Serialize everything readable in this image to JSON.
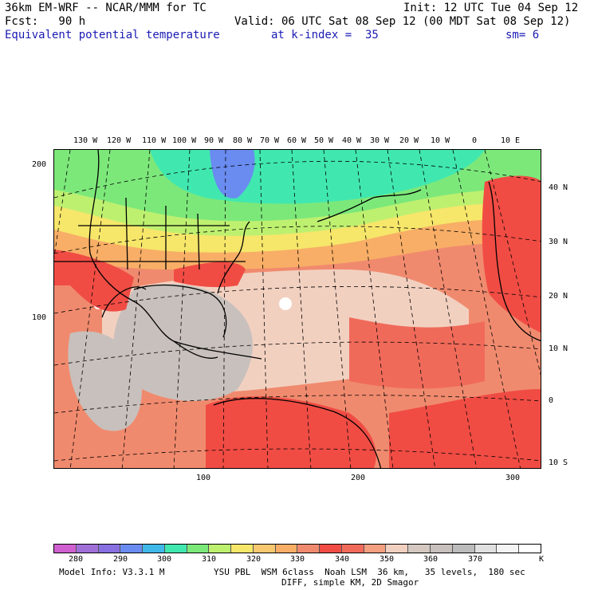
{
  "header": {
    "model_line": "36km EM-WRF -- NCAR/MMM for TC",
    "init_line": "Init: 12 UTC Tue 04 Sep 12",
    "fcst_line": "Fcst:   90 h",
    "valid_line": "Valid: 06 UTC Sat 08 Sep 12 (00 MDT Sat 08 Sep 12)",
    "field_name": "Equivalent potential temperature",
    "k_index": "at k-index =  35",
    "smoothing": "sm= 6"
  },
  "map": {
    "top_longitudes": [
      "130 W",
      "120 W",
      "110 W",
      "100 W",
      "90 W",
      "80 W",
      "70 W",
      "60 W",
      "50 W",
      "40 W",
      "30 W",
      "20 W",
      "10 W",
      "0",
      "10 E"
    ],
    "right_latitudes": [
      "40 N",
      "30 N",
      "20 N",
      "10 N",
      "0",
      "10 S"
    ],
    "left_grid_ticks": [
      "200",
      "100"
    ],
    "bottom_grid_ticks": [
      "100",
      "200",
      "300"
    ],
    "colors": {
      "ocean_warm": "#f08a6e",
      "land_hot": "#f04c44",
      "gray": "#c8c0bc",
      "pale": "#f2d0c0",
      "orange": "#f8ae66",
      "yellow": "#f6e66a",
      "green": "#7ce87a",
      "cyan": "#40e8b0",
      "blue": "#6a8cf0",
      "border": "#000000"
    }
  },
  "colorbar": {
    "colors": [
      "#d060d0",
      "#a070d8",
      "#8870e0",
      "#6a8cf0",
      "#40b8e8",
      "#40e8b0",
      "#7ce87a",
      "#bef070",
      "#f6e66a",
      "#f8c870",
      "#f8ae66",
      "#f08a6e",
      "#f04c44",
      "#f06a5a",
      "#f4a080",
      "#f2d0c0",
      "#d4c8c0",
      "#c8c0bc",
      "#bcbcbc",
      "#e0e0e0",
      "#f4f4f4",
      "#ffffff"
    ],
    "labels": [
      "280",
      "290",
      "300",
      "310",
      "320",
      "330",
      "340",
      "350",
      "360",
      "370"
    ],
    "unit": "K"
  },
  "footer": {
    "model_info": "Model Info: V3.3.1 M",
    "physics": "YSU PBL  WSM 6class  Noah LSM  36 km,   35 levels,  180 sec",
    "diff": "DIFF, simple KM, 2D Smagor"
  }
}
